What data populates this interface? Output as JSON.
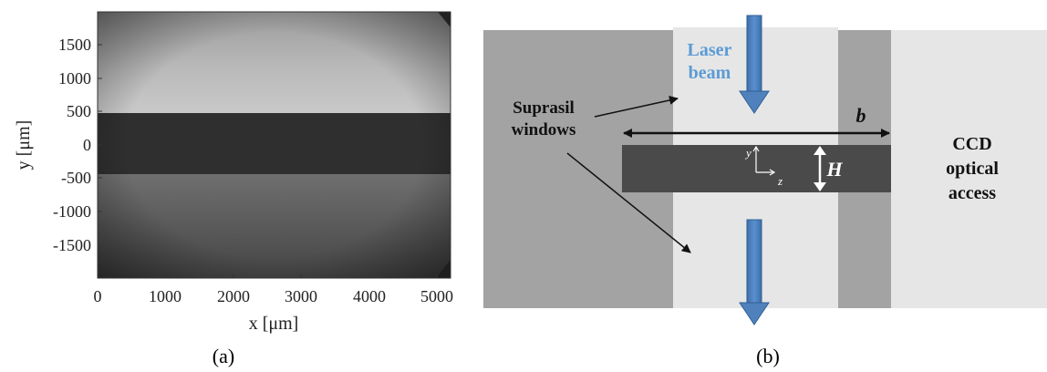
{
  "panel_a": {
    "label": "(a)",
    "x_axis": {
      "title": "x [μm]",
      "ticks": [
        "0",
        "1000",
        "2000",
        "3000",
        "4000",
        "5000"
      ]
    },
    "y_axis": {
      "title": "y [μm]",
      "ticks": [
        "1500",
        "1000",
        "500",
        "0",
        "-500",
        "-1000",
        "-1500"
      ]
    }
  },
  "panel_b": {
    "label": "(b)",
    "laser_label": [
      "Laser",
      "beam"
    ],
    "windows_label": [
      "Suprasil",
      "windows"
    ],
    "ccd_label": [
      "CCD",
      "optical",
      "access"
    ],
    "width_symbol": "b",
    "height_symbol": "H",
    "axis_y": "y",
    "axis_z": "z",
    "colors": {
      "outer_gray": "#a3a3a3",
      "window_gray": "#e6e6e6",
      "channel_gray": "#4a4a4a",
      "beam_blue": "#4f81bd",
      "laser_text": "#5b9bd5"
    }
  }
}
